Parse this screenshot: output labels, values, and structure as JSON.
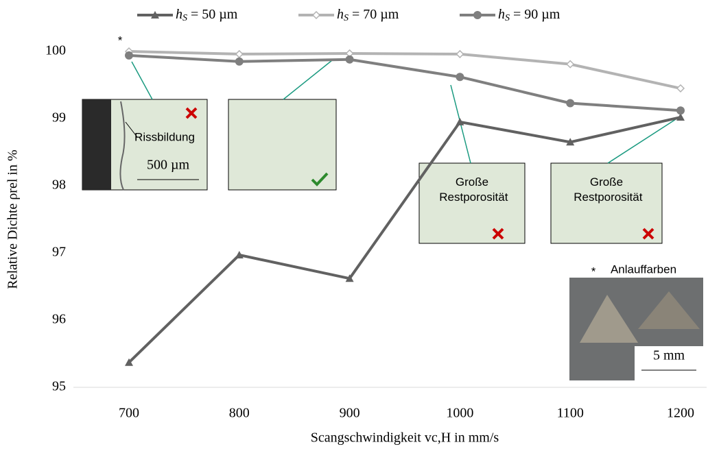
{
  "chart_data": {
    "type": "line",
    "x": [
      700,
      800,
      900,
      1000,
      1100,
      1200
    ],
    "xlim": [
      700,
      1200
    ],
    "xticks": [
      700,
      800,
      900,
      1000,
      1100,
      1200
    ],
    "ylim": [
      95,
      100
    ],
    "yticks": [
      95,
      96,
      97,
      98,
      99,
      100
    ],
    "grid": false,
    "legend": "top",
    "x_label": "Scangschwindigkeit vc,H in mm/s",
    "y_label": "Relative Dichte ρrel in %",
    "series": [
      {
        "name": "hS = 50 µm",
        "color": "#616161",
        "marker": "triangle",
        "values": [
          95.37,
          96.97,
          96.62,
          98.95,
          98.65,
          99.02
        ]
      },
      {
        "name": "hS = 70 µm",
        "color": "#b3b3b3",
        "marker": "diamond",
        "values": [
          100.0,
          99.96,
          99.97,
          99.96,
          99.81,
          99.45
        ]
      },
      {
        "name": "hS = 90 µm",
        "color": "#7f7f7f",
        "marker": "circle",
        "values": [
          99.94,
          99.85,
          99.88,
          99.62,
          99.23,
          99.12
        ]
      }
    ],
    "annotations": [
      "*",
      "Rissbildung",
      "500 µm",
      "Große Restporosität",
      "Große Restporosität",
      "*",
      "Anlauffarben",
      "5 mm"
    ]
  }
}
